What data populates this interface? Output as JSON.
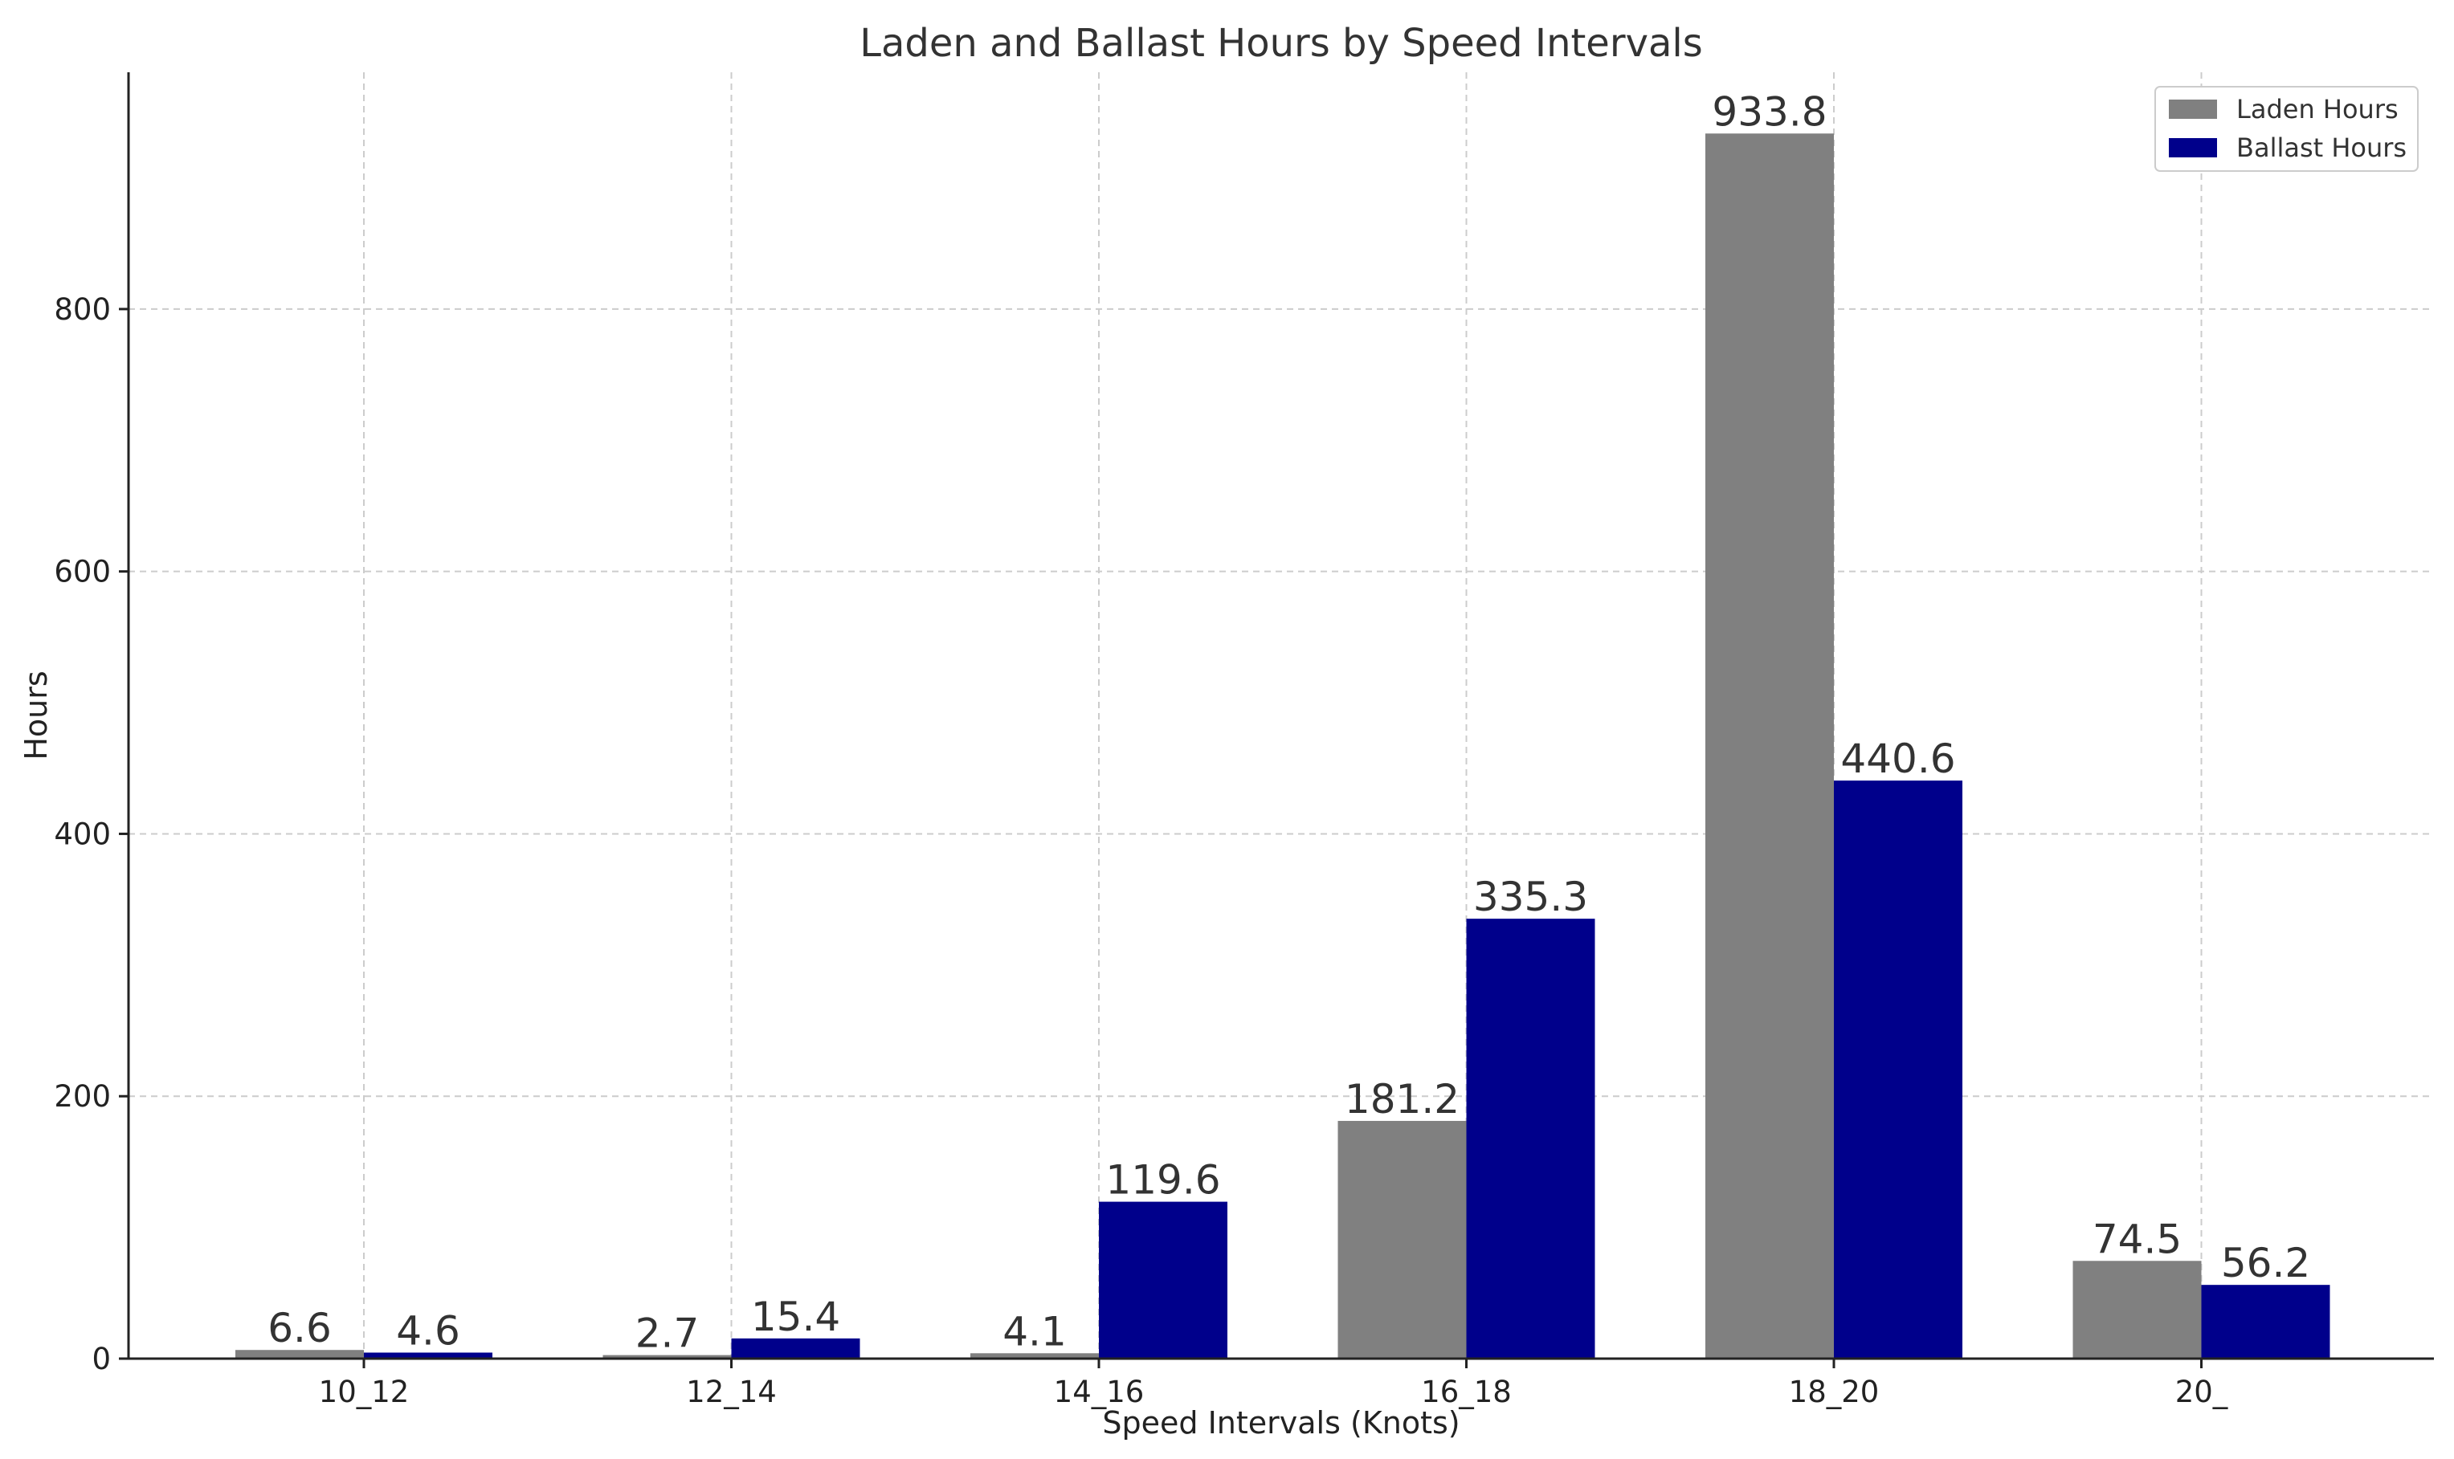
{
  "chart_data": {
    "type": "bar",
    "title": "Laden and Ballast Hours by Speed Intervals",
    "xlabel": "Speed Intervals (Knots)",
    "ylabel": "Hours",
    "categories": [
      "10_12",
      "12_14",
      "14_16",
      "16_18",
      "18_20",
      "20_"
    ],
    "series": [
      {
        "name": "Laden Hours",
        "color": "#808080",
        "values": [
          6.6,
          2.7,
          4.1,
          181.2,
          933.8,
          74.5
        ]
      },
      {
        "name": "Ballast Hours",
        "color": "#00008b",
        "values": [
          4.6,
          15.4,
          119.6,
          335.3,
          440.6,
          56.2
        ]
      }
    ],
    "ylim": [
      0,
      980.49
    ],
    "yticks": [
      0,
      200,
      400,
      600,
      800
    ],
    "grid": true,
    "legend_position": "top-right"
  }
}
